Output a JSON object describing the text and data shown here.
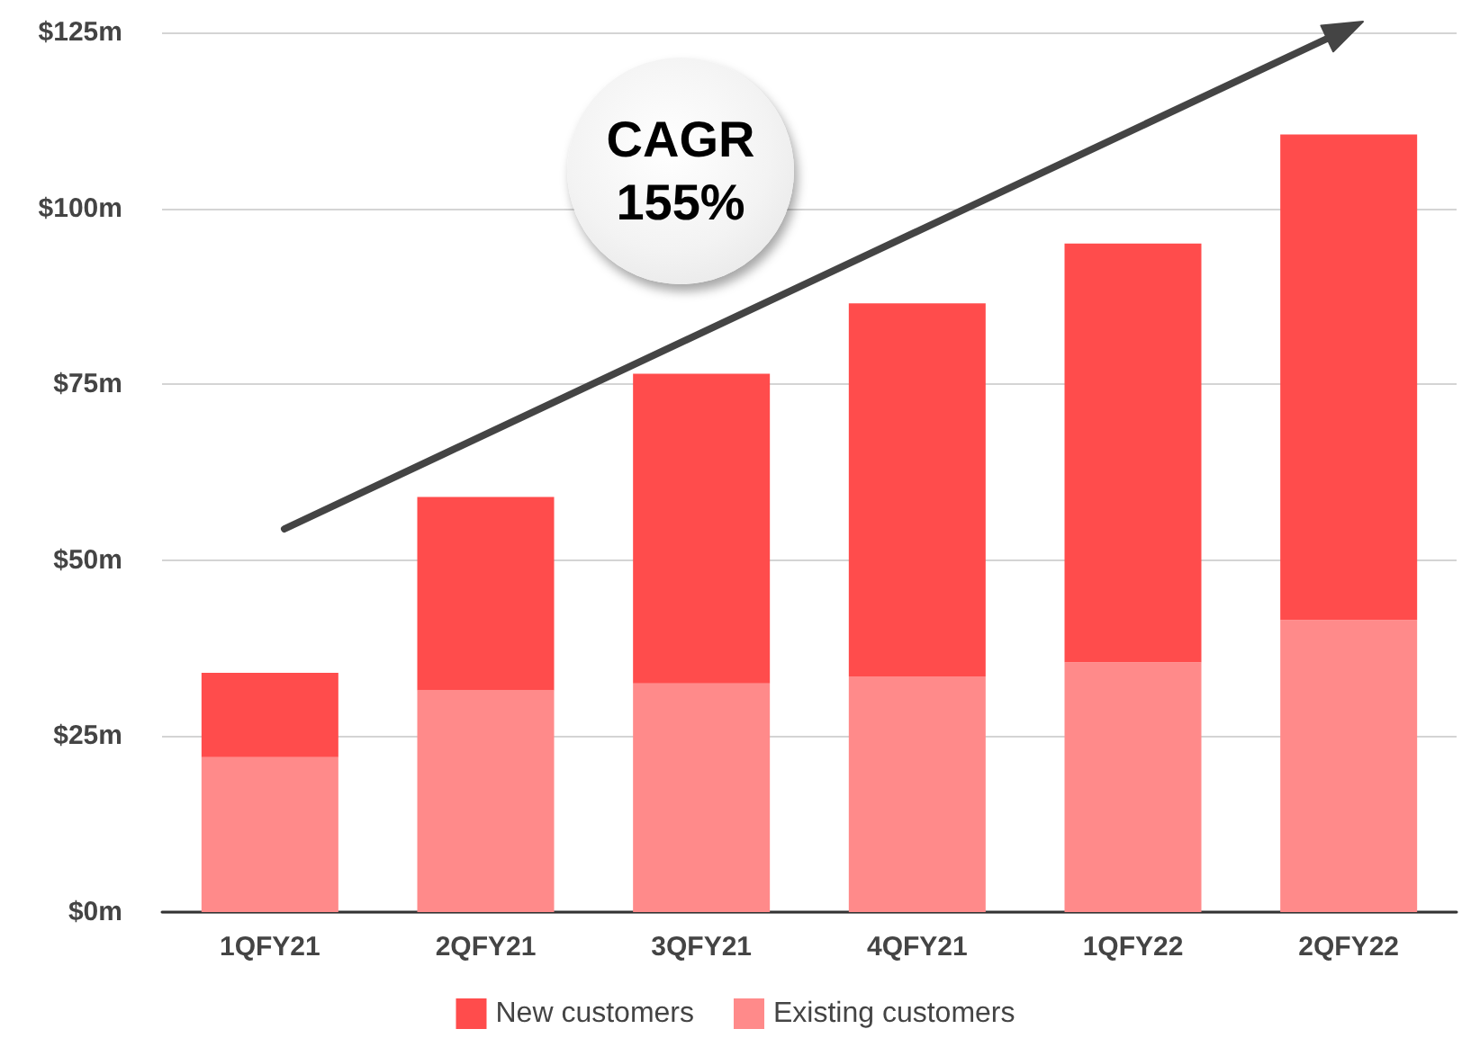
{
  "chart_data": {
    "type": "bar",
    "stacked": true,
    "categories": [
      "1QFY21",
      "2QFY21",
      "3QFY21",
      "4QFY21",
      "1QFY22",
      "2QFY22"
    ],
    "series": [
      {
        "name": "Existing customers",
        "color": "#ff8a8a",
        "values": [
          22,
          31.5,
          32.5,
          33.5,
          35.5,
          41.5
        ]
      },
      {
        "name": "New customers",
        "color": "#ff4c4c",
        "values": [
          12,
          27.5,
          44,
          53,
          59.5,
          69
        ]
      }
    ],
    "ylim": [
      0,
      125
    ],
    "yticks": [
      {
        "value": 0,
        "label": "$0m"
      },
      {
        "value": 25,
        "label": "$25m"
      },
      {
        "value": 50,
        "label": "$50m"
      },
      {
        "value": 75,
        "label": "$75m"
      },
      {
        "value": 100,
        "label": "$100m"
      },
      {
        "value": 125,
        "label": "$125m"
      }
    ],
    "grid": "y",
    "legend": "bottom",
    "annotations": [
      "CAGR 155%"
    ]
  }
}
